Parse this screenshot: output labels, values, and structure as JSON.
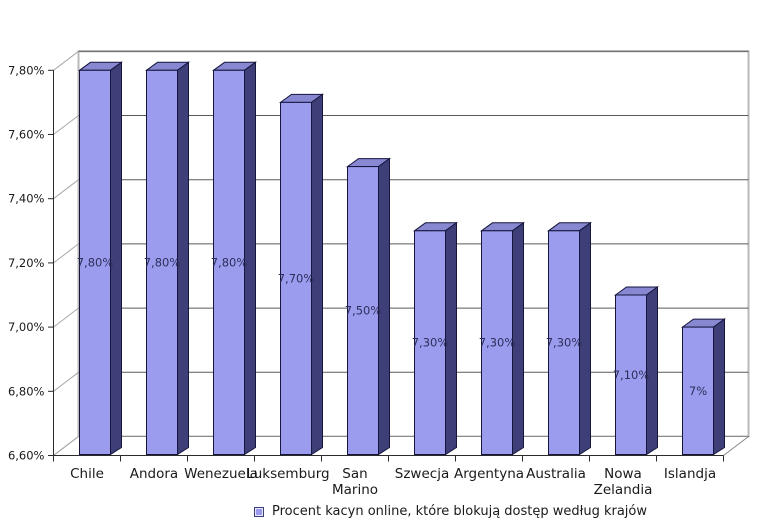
{
  "chart_data": {
    "type": "bar",
    "projection": "3d",
    "title": "",
    "categories": [
      "Chile",
      "Andora",
      "Wenezuela",
      "Luksemburg",
      "San Marino",
      "Szwecja",
      "Argentyna",
      "Australia",
      "Nowa Zelandia",
      "Islandja"
    ],
    "category_label_lines": [
      [
        "Chile"
      ],
      [
        "Andora"
      ],
      [
        "Wenezuela"
      ],
      [
        "Luksemburg"
      ],
      [
        "San",
        "Marino"
      ],
      [
        "Szwecja"
      ],
      [
        "Argentyna"
      ],
      [
        "Australia"
      ],
      [
        "Nowa",
        "Zelandia"
      ],
      [
        "Islandja"
      ]
    ],
    "values": [
      7.8,
      7.8,
      7.8,
      7.7,
      7.5,
      7.3,
      7.3,
      7.3,
      7.1,
      7.0
    ],
    "value_labels": [
      "7,80%",
      "7,80%",
      "7,80%",
      "7,70%",
      "7,50%",
      "7,30%",
      "7,30%",
      "7,30%",
      "7,10%",
      "7%"
    ],
    "xlabel": "",
    "ylabel": "",
    "ylim": [
      6.6,
      7.8
    ],
    "y_axis": {
      "tick_labels": [
        "6,60%",
        "6,80%",
        "7,00%",
        "7,20%",
        "7,40%",
        "7,60%",
        "7,80%"
      ],
      "tick_values": [
        6.6,
        6.8,
        7.0,
        7.2,
        7.4,
        7.6,
        7.8
      ],
      "step": 0.2
    },
    "grid": true,
    "legend_position": "bottom",
    "legend": "Procent kacyn online, które blokują dostęp według krajów",
    "colors": {
      "bar_front": "#9c9cee",
      "bar_side": "#3e3e78",
      "bar_top": "#8787d2",
      "bar_outline": "#16163c",
      "gridline": "#5a5a5a",
      "wall_border": "#b9b9b9",
      "guide_line": "#a8a8a8",
      "axis_line": "#2b2b2b",
      "value_label_text": "#2e2e5c",
      "axis_text": "#1a1a1a"
    }
  }
}
